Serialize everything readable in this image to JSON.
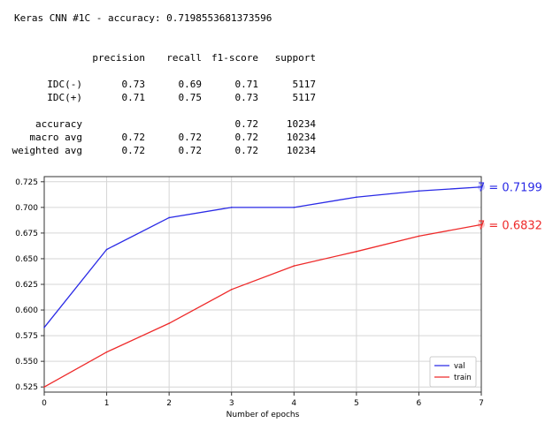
{
  "report": {
    "title": "Keras CNN #1C - accuracy: 0.7198553681373596",
    "headers": [
      "precision",
      "recall",
      "f1-score",
      "support"
    ],
    "rows": [
      {
        "label": "IDC(-)",
        "precision": "0.73",
        "recall": "0.69",
        "f1": "0.71",
        "support": "5117"
      },
      {
        "label": "IDC(+)",
        "precision": "0.71",
        "recall": "0.75",
        "f1": "0.73",
        "support": "5117"
      },
      {
        "label": "accuracy",
        "precision": "",
        "recall": "",
        "f1": "0.72",
        "support": "10234"
      },
      {
        "label": "macro avg",
        "precision": "0.72",
        "recall": "0.72",
        "f1": "0.72",
        "support": "10234"
      },
      {
        "label": "weighted avg",
        "precision": "0.72",
        "recall": "0.72",
        "f1": "0.72",
        "support": "10234"
      }
    ]
  },
  "chart_data": {
    "type": "line",
    "title": "",
    "xlabel": "Number of epochs",
    "ylabel": "",
    "xlim": [
      0,
      7
    ],
    "ylim": [
      0.52,
      0.73
    ],
    "xticks": [
      "0",
      "1",
      "2",
      "3",
      "4",
      "5",
      "6",
      "7"
    ],
    "yticks": [
      "0.525",
      "0.550",
      "0.575",
      "0.600",
      "0.625",
      "0.650",
      "0.675",
      "0.700",
      "0.725"
    ],
    "grid": true,
    "legend_position": "lower-right",
    "x": [
      0,
      1,
      2,
      3,
      4,
      5,
      6,
      7
    ],
    "series": [
      {
        "name": "val",
        "color": "#2a2ae6",
        "values": [
          0.583,
          0.659,
          0.69,
          0.7,
          0.7,
          0.71,
          0.716,
          0.7199
        ]
      },
      {
        "name": "train",
        "color": "#ee2a2a",
        "values": [
          0.525,
          0.559,
          0.587,
          0.62,
          0.643,
          0.657,
          0.672,
          0.6832
        ]
      }
    ],
    "annotations": [
      {
        "text": "7 = 0.7199",
        "x": 7,
        "y": 0.7199,
        "color": "#2a2ae6"
      },
      {
        "text": "7 = 0.6832",
        "x": 7,
        "y": 0.6832,
        "color": "#ee2a2a"
      }
    ]
  }
}
